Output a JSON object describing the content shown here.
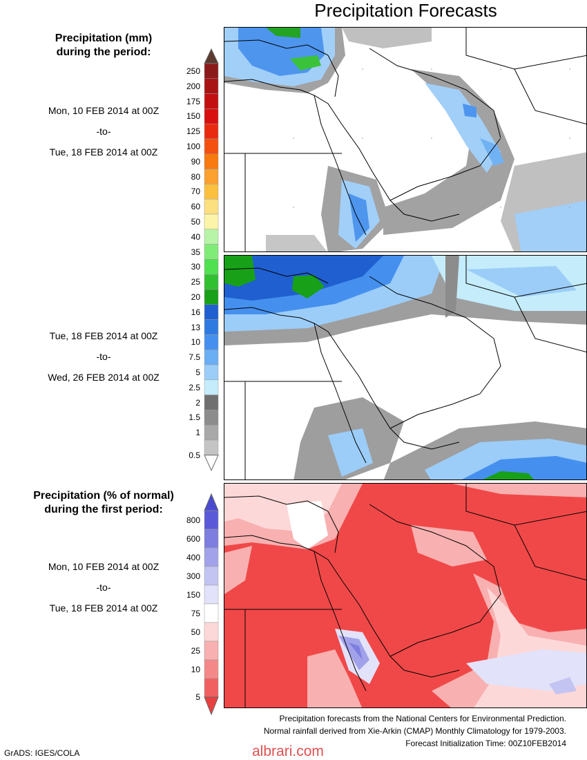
{
  "title": "Precipitation Forecasts",
  "precip_block": {
    "title_line1": "Precipitation (mm)",
    "title_line2": "during the period:"
  },
  "period1": {
    "start": "Mon, 10 FEB 2014 at 00Z",
    "sep": "-to-",
    "end": "Tue, 18 FEB 2014 at 00Z"
  },
  "period2": {
    "start": "Tue, 18 FEB 2014 at 00Z",
    "sep": "-to-",
    "end": "Wed, 26 FEB 2014 at 00Z"
  },
  "percent_block": {
    "title_line1": "Precipitation (% of normal)",
    "title_line2": "during the first period:"
  },
  "period3": {
    "start": "Mon, 10 FEB 2014 at 00Z",
    "sep": "-to-",
    "end": "Tue, 18 FEB 2014 at 00Z"
  },
  "mm_colorbar": {
    "labels": [
      "250",
      "200",
      "175",
      "150",
      "125",
      "100",
      "90",
      "80",
      "70",
      "60",
      "50",
      "40",
      "35",
      "30",
      "25",
      "20",
      "16",
      "13",
      "10",
      "7.5",
      "5",
      "2.5",
      "2",
      "1.5",
      "1",
      "0.5"
    ],
    "colors": [
      "#8b1a1a",
      "#a81414",
      "#c21010",
      "#d81010",
      "#ea2a10",
      "#f45010",
      "#f87a10",
      "#fca030",
      "#fcc040",
      "#fce080",
      "#fcf4a8",
      "#b8f4a8",
      "#80ec78",
      "#50e050",
      "#30c030",
      "#18a018",
      "#1f5fd0",
      "#2f7ae0",
      "#4590ee",
      "#6aaef4",
      "#9ccdf8",
      "#c4ecfa",
      "#707070",
      "#8c8c8c",
      "#a8a8a8",
      "#c4c4c4"
    ],
    "top_arrow_color": "#5c3a30",
    "bottom_arrow_color": "#ffffff"
  },
  "pct_colorbar": {
    "labels": [
      "800",
      "600",
      "400",
      "300",
      "150",
      "75",
      "50",
      "25",
      "10",
      "5"
    ],
    "colors": [
      "#5a5ad8",
      "#7e7ee0",
      "#a2a2ea",
      "#c4c4f2",
      "#e2e2fa",
      "#ffffff",
      "#fdd8d8",
      "#f8b0b0",
      "#f48888",
      "#f06060"
    ],
    "top_arrow_color": "#4a4ad0",
    "bottom_arrow_color": "#e84040"
  },
  "footer": {
    "line1": "Precipitation forecasts from the National Centers for Environmental Prediction.",
    "line2": "Normal rainfall derived from Xie-Arkin (CMAP) Monthly Climatology for 1979-2003.",
    "line3": "Forecast Initialization Time: 00Z10FEB2014"
  },
  "credit": "GrADS: IGES/COLA",
  "watermark": "albrari.com"
}
